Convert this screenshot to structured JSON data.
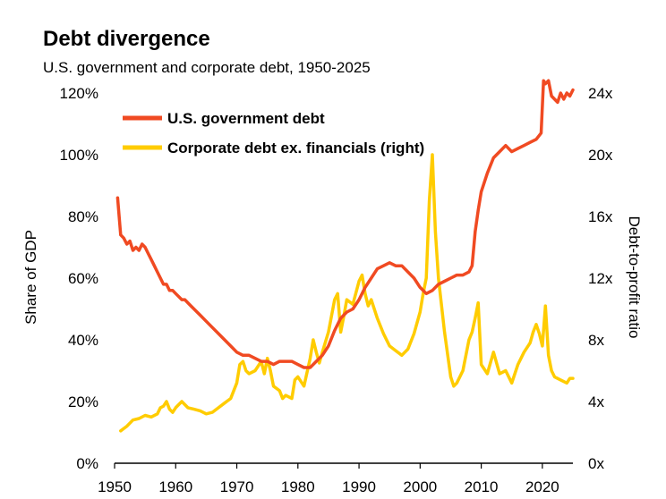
{
  "chart_data": {
    "type": "line",
    "title": "Debt divergence",
    "subtitle": "U.S. government and corporate debt, 1950-2025",
    "ylabel": "Share of GDP",
    "y2label": "Debt-to-profit ratio",
    "xlim": [
      1950,
      2025
    ],
    "ylim": [
      0,
      120
    ],
    "y2lim": [
      0,
      24
    ],
    "x_ticks": [
      1950,
      1960,
      1970,
      1980,
      1990,
      2000,
      2010,
      2020
    ],
    "x_tick_labels": [
      "1950",
      "1960",
      "1970",
      "1980",
      "1990",
      "2000",
      "2010",
      "2020"
    ],
    "y_ticks": [
      0,
      20,
      40,
      60,
      80,
      100,
      120
    ],
    "y_tick_labels": [
      "0%",
      "20%",
      "40%",
      "60%",
      "80%",
      "100%",
      "120%"
    ],
    "y2_ticks": [
      0,
      4,
      8,
      12,
      16,
      20,
      24
    ],
    "y2_tick_labels": [
      "0x",
      "4x",
      "8x",
      "12x",
      "16x",
      "20x",
      "24x"
    ],
    "legend_position": "top",
    "series": [
      {
        "name": "U.S. government debt",
        "axis": "left",
        "color": "#f04a22",
        "x": [
          1950.5,
          1951,
          1951.5,
          1952,
          1952.5,
          1953,
          1953.5,
          1954,
          1954.5,
          1955,
          1955.5,
          1956,
          1956.5,
          1957,
          1957.5,
          1958,
          1958.5,
          1959,
          1959.5,
          1960,
          1960.5,
          1961,
          1961.5,
          1962,
          1962.5,
          1963,
          1963.5,
          1964,
          1965,
          1966,
          1967,
          1968,
          1969,
          1970,
          1971,
          1972,
          1973,
          1974,
          1975,
          1976,
          1977,
          1978,
          1979,
          1980,
          1981,
          1982,
          1983,
          1984,
          1985,
          1986,
          1987,
          1988,
          1989,
          1990,
          1991,
          1992,
          1993,
          1994,
          1995,
          1996,
          1997,
          1998,
          1999,
          2000,
          2001,
          2002,
          2003,
          2004,
          2005,
          2006,
          2007,
          2008,
          2008.5,
          2009,
          2009.5,
          2010,
          2011,
          2012,
          2013,
          2014,
          2015,
          2016,
          2017,
          2018,
          2019,
          2019.8,
          2020.2,
          2020.5,
          2021,
          2021.5,
          2022,
          2022.5,
          2023,
          2023.5,
          2024,
          2024.5,
          2025
        ],
        "values": [
          86,
          74,
          73,
          71,
          72,
          69,
          70,
          69,
          71,
          70,
          68,
          66,
          64,
          62,
          60,
          58,
          58,
          56,
          56,
          55,
          54,
          53,
          53,
          52,
          51,
          50,
          49,
          48,
          46,
          44,
          42,
          40,
          38,
          36,
          35,
          35,
          34,
          33,
          33,
          32,
          33,
          33,
          33,
          32,
          31,
          31,
          33,
          35,
          38,
          43,
          47,
          49,
          50,
          53,
          57,
          60,
          63,
          64,
          65,
          64,
          64,
          62,
          60,
          57,
          55,
          56,
          58,
          59,
          60,
          61,
          61,
          62,
          64,
          75,
          82,
          88,
          94,
          99,
          101,
          103,
          101,
          102,
          103,
          104,
          105,
          107,
          124,
          123,
          124,
          119,
          118,
          117,
          120,
          118,
          120,
          119,
          121
        ]
      },
      {
        "name": "Corporate debt ex. financials (right)",
        "axis": "right",
        "color": "#ffcc00",
        "x": [
          1951,
          1952,
          1953,
          1954,
          1955,
          1956,
          1957,
          1957.5,
          1958,
          1958.5,
          1959,
          1959.5,
          1960,
          1960.5,
          1961,
          1962,
          1963,
          1964,
          1965,
          1966,
          1967,
          1968,
          1969,
          1970,
          1970.5,
          1971,
          1971.5,
          1972,
          1973,
          1974,
          1974.5,
          1975,
          1975.5,
          1976,
          1977,
          1977.5,
          1978,
          1979,
          1979.5,
          1980,
          1981,
          1982,
          1982.5,
          1983,
          1983.5,
          1984,
          1985,
          1986,
          1986.5,
          1987,
          1987.5,
          1988,
          1989,
          1990,
          1990.5,
          1991,
          1991.5,
          1992,
          1993,
          1994,
          1995,
          1996,
          1997,
          1998,
          1999,
          2000,
          2000.5,
          2001,
          2001.5,
          2002,
          2002.5,
          2003,
          2004,
          2005,
          2005.5,
          2006,
          2007,
          2008,
          2008.5,
          2009,
          2009.5,
          2010,
          2011,
          2012,
          2013,
          2014,
          2015,
          2016,
          2017,
          2018,
          2018.5,
          2019,
          2019.5,
          2020,
          2020.5,
          2021,
          2021.5,
          2022,
          2023,
          2024,
          2024.5,
          2025
        ],
        "values": [
          2.1,
          2.4,
          2.8,
          2.9,
          3.1,
          3.0,
          3.2,
          3.6,
          3.7,
          4.0,
          3.5,
          3.3,
          3.6,
          3.8,
          4.0,
          3.6,
          3.5,
          3.4,
          3.2,
          3.3,
          3.6,
          3.9,
          4.2,
          5.2,
          6.4,
          6.6,
          6.0,
          5.8,
          6.0,
          6.6,
          5.8,
          6.8,
          6.0,
          5.0,
          4.7,
          4.2,
          4.4,
          4.2,
          5.4,
          5.6,
          5.0,
          6.8,
          8.0,
          7.2,
          6.5,
          7.2,
          8.5,
          10.6,
          11.0,
          8.5,
          9.5,
          10.6,
          10.3,
          11.8,
          12.2,
          11.0,
          10.2,
          10.6,
          9.4,
          8.4,
          7.6,
          7.3,
          7.0,
          7.4,
          8.4,
          9.8,
          11.0,
          12.0,
          17.0,
          20.0,
          15.0,
          12.0,
          8.5,
          5.6,
          5.0,
          5.2,
          6.0,
          8.0,
          8.5,
          9.4,
          10.4,
          6.4,
          5.8,
          7.2,
          5.8,
          6.0,
          5.2,
          6.4,
          7.2,
          7.8,
          8.5,
          9.0,
          8.4,
          7.6,
          10.2,
          7.0,
          6.0,
          5.6,
          5.4,
          5.2,
          5.5,
          5.5
        ]
      }
    ]
  }
}
